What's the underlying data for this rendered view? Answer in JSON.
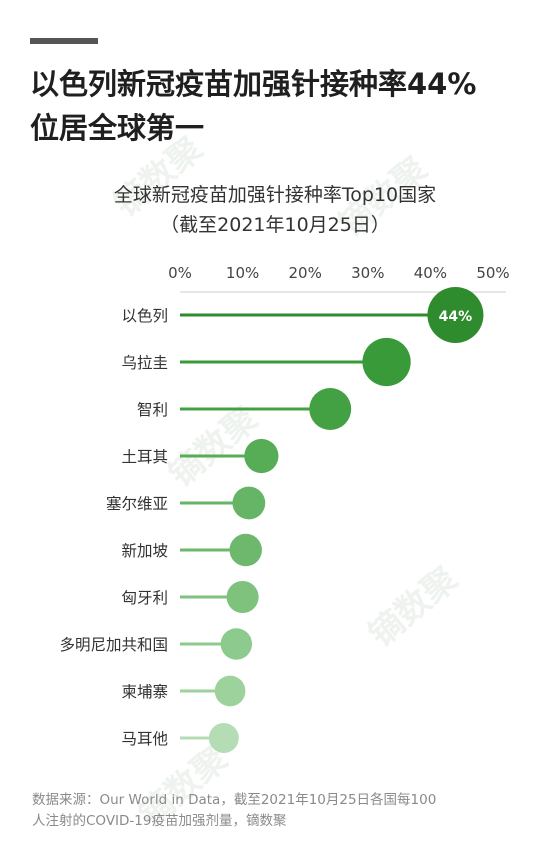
{
  "header": {
    "line1": "以色列新冠疫苗加强针接种率44%",
    "line2": "位居全球第一"
  },
  "watermark": "镝数聚",
  "footnote": {
    "line1": "数据来源：Our World in Data，截至2021年10月25日各国每100",
    "line2": "人注射的COVID-19疫苗加强剂量，镝数聚"
  },
  "chart_data": {
    "type": "lollipop",
    "title": "全球新冠疫苗加强针接种率Top10国家",
    "subtitle": "（截至2021年10月25日）",
    "xlim": [
      0,
      50
    ],
    "x_ticks": [
      "0%",
      "10%",
      "20%",
      "30%",
      "40%",
      "50%"
    ],
    "grid": false,
    "categories": [
      "以色列",
      "乌拉圭",
      "智利",
      "土耳其",
      "塞尔维亚",
      "新加坡",
      "匈牙利",
      "多明尼加共和国",
      "柬埔寨",
      "马耳他"
    ],
    "values": [
      44,
      33,
      24,
      13,
      11,
      10.5,
      10,
      9,
      8,
      7
    ],
    "data_labels": [
      "44%",
      "",
      "",
      "",
      "",
      "",
      "",
      "",
      "",
      ""
    ],
    "colors": [
      "#2e8b2e",
      "#389a38",
      "#43a143",
      "#56ad56",
      "#66b566",
      "#6eb86e",
      "#7ec27e",
      "#8dca8d",
      "#9dd29d",
      "#b5ddb5"
    ]
  }
}
